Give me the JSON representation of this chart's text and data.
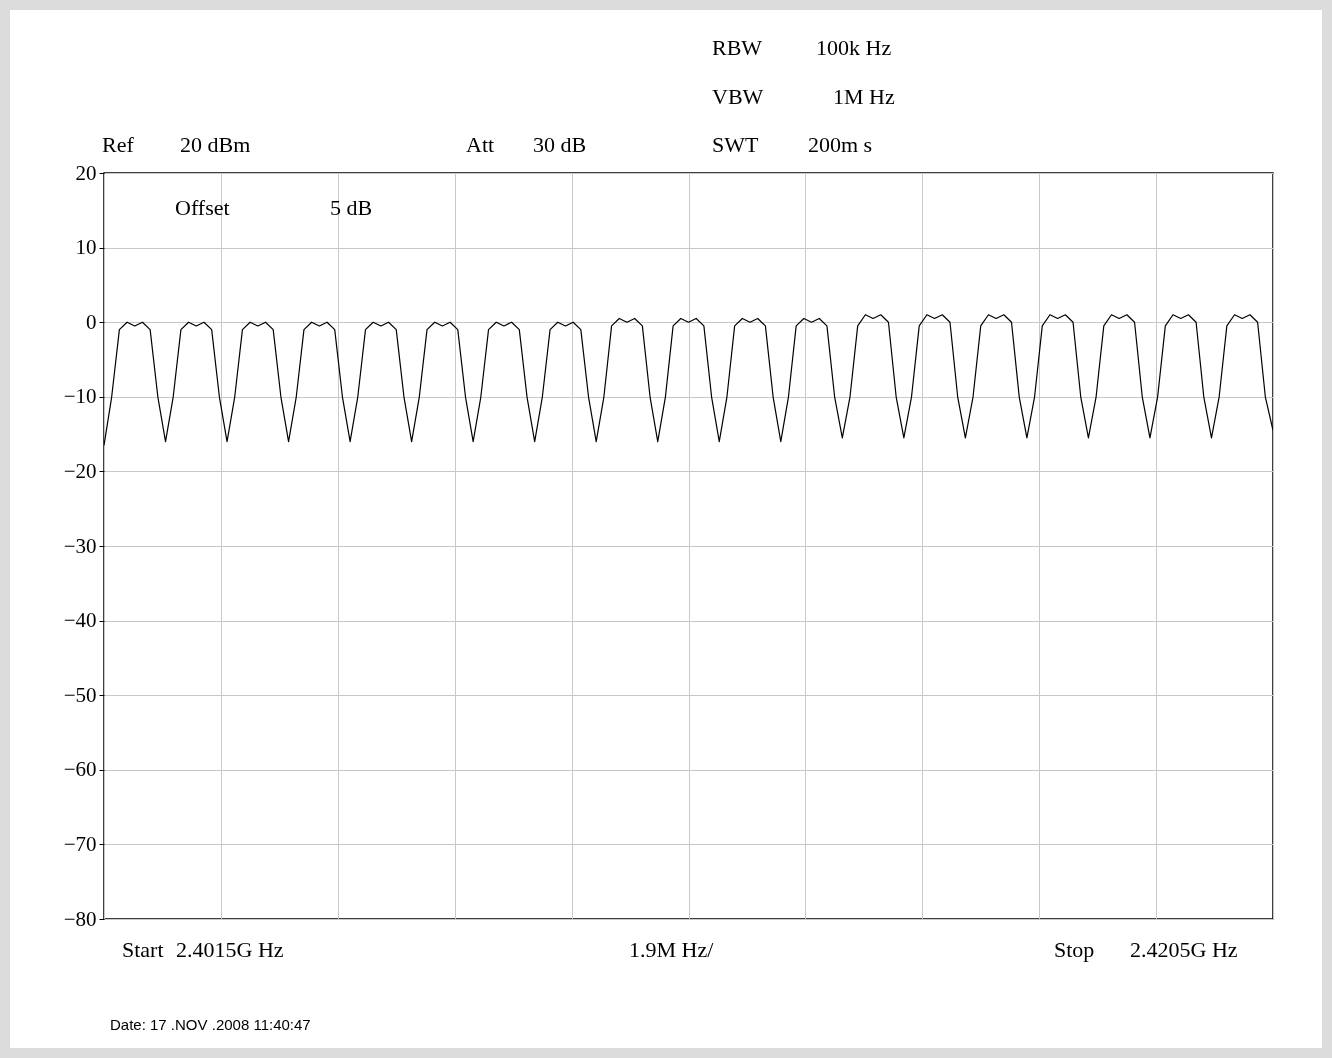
{
  "chart_data": {
    "type": "line",
    "annotations": [
      "RBW",
      "100k Hz",
      "VBW",
      "1M Hz",
      "SWT",
      "200m s",
      "Ref",
      "20 dBm",
      "Att",
      "30 dB",
      "Offset",
      "5 dB",
      "Start",
      "2.4015G Hz",
      "1.9M Hz/",
      "Stop",
      "2.4205G Hz",
      "Date:  17 .NOV .2008 11:40:47"
    ],
    "categories": [
      null,
      null,
      null,
      null,
      null,
      null,
      null,
      null,
      null,
      null,
      null,
      null,
      null,
      null,
      null,
      null,
      null,
      null,
      null,
      null,
      null,
      null,
      null,
      null,
      null,
      null,
      null,
      null,
      null,
      null,
      null,
      null,
      null,
      null,
      null,
      null,
      null,
      null,
      null,
      null,
      null,
      null,
      null,
      null,
      null,
      null,
      null,
      null,
      null,
      null,
      null,
      null,
      null,
      null,
      null,
      null,
      null,
      null,
      null,
      null,
      null,
      null,
      null,
      null,
      null,
      null,
      null,
      null,
      null,
      null,
      null,
      null,
      null,
      null,
      null,
      null,
      null,
      null,
      null,
      null,
      null,
      null,
      null,
      null,
      null,
      null,
      null,
      null,
      null,
      null,
      null,
      null,
      null,
      null,
      null,
      null,
      null,
      null,
      null,
      null,
      null,
      null,
      null,
      null,
      null,
      null,
      null,
      null,
      null,
      null,
      null,
      null,
      null,
      null,
      null,
      null,
      null,
      null,
      null,
      null,
      null,
      null,
      null,
      null,
      null,
      null,
      null,
      null,
      null,
      null,
      null,
      null,
      null,
      null,
      null,
      null,
      null,
      null,
      null,
      null,
      null,
      null,
      null,
      null,
      null,
      null,
      null,
      null,
      null,
      null,
      null,
      null,
      null
    ],
    "series": [
      {
        "color": "#000000",
        "values": [
          -16.5,
          -10,
          -1,
          0,
          -0.5,
          0,
          -1,
          -10,
          -16,
          -10,
          -1,
          0,
          -0.5,
          0,
          -1,
          -10,
          -16,
          -10,
          -1,
          0,
          -0.5,
          0,
          -1,
          -10,
          -16,
          -10,
          -1,
          0,
          -0.5,
          0,
          -1,
          -10,
          -16,
          -10,
          -1,
          0,
          -0.5,
          0,
          -1,
          -10,
          -16,
          -10,
          -1,
          0,
          -0.5,
          0,
          -1,
          -10,
          -16,
          -10,
          -1,
          0,
          -0.5,
          0,
          -1,
          -10,
          -16,
          -10,
          -1,
          0,
          -0.5,
          0,
          -1,
          -10,
          -16,
          -10,
          -0.5,
          0.5,
          0,
          0.5,
          -0.5,
          -10,
          -16,
          -10,
          -0.5,
          0.5,
          0,
          0.5,
          -0.5,
          -10,
          -16,
          -10,
          -0.5,
          0.5,
          0,
          0.5,
          -0.5,
          -10,
          -16,
          -10,
          -0.5,
          0.5,
          0,
          0.5,
          -0.5,
          -10,
          -15.5,
          -10,
          -0.5,
          1,
          0.5,
          1,
          0,
          -10,
          -15.5,
          -10,
          -0.5,
          1,
          0.5,
          1,
          0,
          -10,
          -15.5,
          -10,
          -0.5,
          1,
          0.5,
          1,
          0,
          -10,
          -15.5,
          -10,
          -0.5,
          1,
          0.5,
          1,
          0,
          -10,
          -15.5,
          -10,
          -0.5,
          1,
          0.5,
          1,
          0,
          -10,
          -15.5,
          -10,
          -0.5,
          1,
          0.5,
          1,
          0,
          -10,
          -15.5,
          -10,
          -0.5,
          1,
          0.5,
          1,
          0,
          -10,
          -14.5
        ]
      }
    ],
    "ylim": [
      -80,
      20
    ],
    "yticks": [
      20,
      10,
      0,
      -10,
      -20,
      -30,
      -40,
      -50,
      -60,
      -70,
      -80
    ],
    "grid": true,
    "tick_labels": "y",
    "line_style": "solid",
    "marker": "none"
  }
}
